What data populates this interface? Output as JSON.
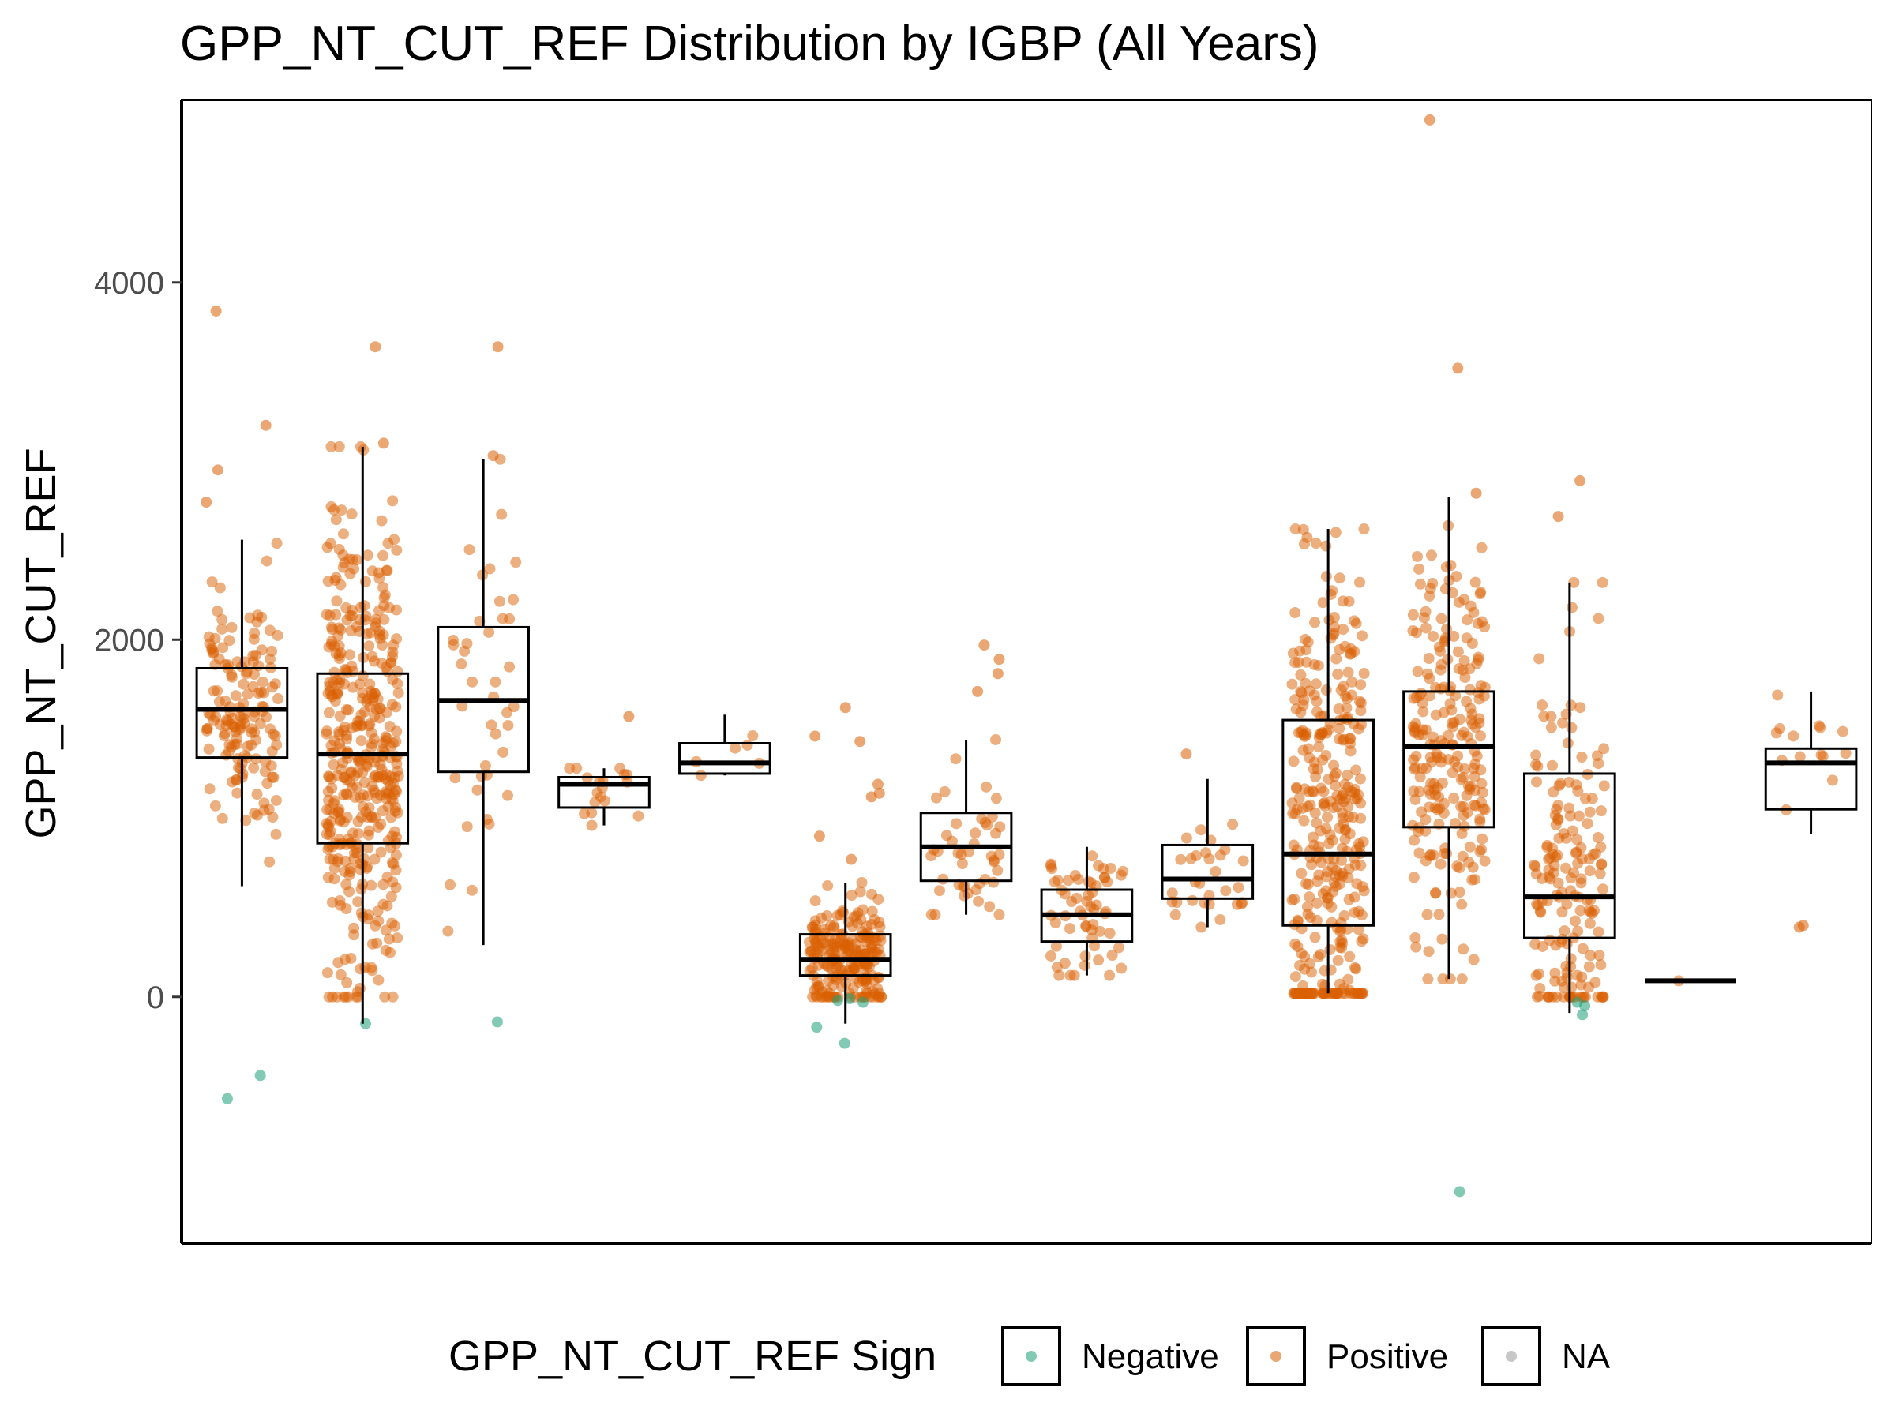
{
  "chart_data": {
    "type": "box",
    "title": "GPP_NT_CUT_REF Distribution by IGBP (All Years)",
    "xlabel": "",
    "ylabel": "GPP_NT_CUT_REF",
    "ylim": [
      -1380,
      5020
    ],
    "yticks": [
      0,
      2000,
      4000
    ],
    "grid": false,
    "legend": {
      "title": "GPP_NT_CUT_REF Sign",
      "position": "bottom",
      "entries": [
        {
          "label": "Negative",
          "color": "#1b9e77"
        },
        {
          "label": "Positive",
          "color": "#d95f02"
        },
        {
          "label": "NA",
          "color": "#999999"
        }
      ]
    },
    "series": [
      {
        "q1": 1340,
        "median": 1610,
        "q3": 1840,
        "whisker_low": 620,
        "whisker_high": 2560,
        "n_points": 150,
        "outliers": [
          3840,
          3200,
          2950,
          2770,
          -440,
          -570
        ],
        "negatives": [
          -440,
          -570
        ]
      },
      {
        "q1": 860,
        "median": 1360,
        "q3": 1810,
        "whisker_low": -150,
        "whisker_high": 3080,
        "n_points": 420,
        "outliers": [
          3640,
          3100
        ],
        "negatives": [
          -150
        ]
      },
      {
        "q1": 1260,
        "median": 1660,
        "q3": 2070,
        "whisker_low": 290,
        "whisker_high": 3010,
        "n_points": 40,
        "outliers": [
          3640,
          3030
        ],
        "negatives": [
          -140
        ]
      },
      {
        "q1": 1060,
        "median": 1190,
        "q3": 1230,
        "whisker_low": 960,
        "whisker_high": 1280,
        "n_points": 18,
        "outliers": [
          1570
        ],
        "negatives": []
      },
      {
        "q1": 1250,
        "median": 1310,
        "q3": 1420,
        "whisker_low": 1240,
        "whisker_high": 1580,
        "n_points": 6,
        "outliers": [],
        "negatives": []
      },
      {
        "q1": 120,
        "median": 210,
        "q3": 350,
        "whisker_low": -150,
        "whisker_high": 640,
        "n_points": 220,
        "outliers": [
          1620,
          1460,
          1430,
          1190,
          1140,
          1120,
          900,
          770,
          -170,
          -260
        ],
        "negatives": [
          -20,
          -10,
          -30,
          -170,
          -260
        ]
      },
      {
        "q1": 650,
        "median": 840,
        "q3": 1030,
        "whisker_low": 460,
        "whisker_high": 1440,
        "n_points": 45,
        "outliers": [
          1970,
          1890,
          1810,
          1710
        ],
        "negatives": []
      },
      {
        "q1": 310,
        "median": 460,
        "q3": 600,
        "whisker_low": 120,
        "whisker_high": 840,
        "n_points": 60,
        "outliers": [],
        "negatives": []
      },
      {
        "q1": 550,
        "median": 660,
        "q3": 850,
        "whisker_low": 390,
        "whisker_high": 1220,
        "n_points": 30,
        "outliers": [
          1360
        ],
        "negatives": []
      },
      {
        "q1": 400,
        "median": 800,
        "q3": 1550,
        "whisker_low": 20,
        "whisker_high": 2620,
        "n_points": 350,
        "outliers": [],
        "negatives": []
      },
      {
        "q1": 950,
        "median": 1400,
        "q3": 1710,
        "whisker_low": 100,
        "whisker_high": 2800,
        "n_points": 230,
        "outliers": [
          4910,
          3520,
          2820,
          -1090
        ],
        "negatives": [
          -1090
        ]
      },
      {
        "q1": 330,
        "median": 560,
        "q3": 1250,
        "whisker_low": -90,
        "whisker_high": 2320,
        "n_points": 170,
        "outliers": [
          2890,
          2690
        ],
        "negatives": [
          -100,
          -30,
          -50
        ]
      },
      {
        "q1": 90,
        "median": 90,
        "q3": 90,
        "whisker_low": 90,
        "whisker_high": 90,
        "n_points": 1,
        "outliers": [],
        "negatives": []
      },
      {
        "q1": 1050,
        "median": 1310,
        "q3": 1390,
        "whisker_low": 910,
        "whisker_high": 1710,
        "n_points": 14,
        "outliers": [
          400,
          390
        ],
        "negatives": []
      }
    ]
  }
}
